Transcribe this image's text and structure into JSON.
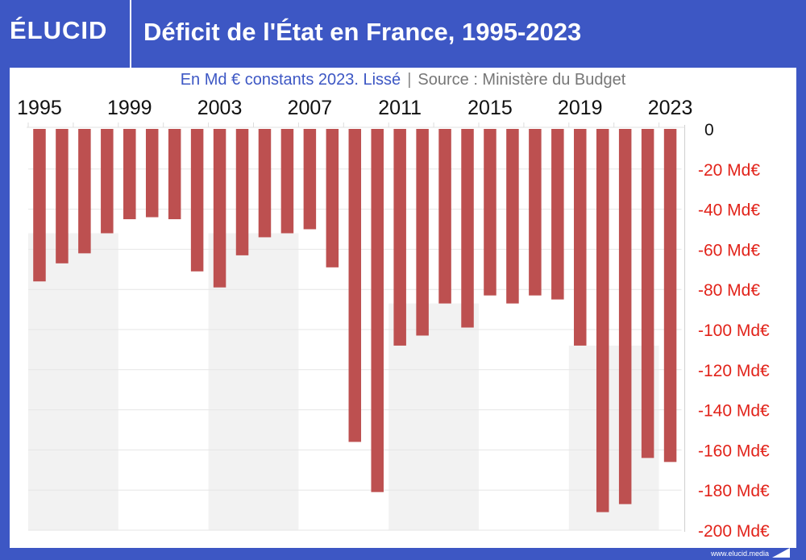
{
  "header": {
    "logo": "ÉLUCID",
    "title": "Déficit de l'État en France, 1995-2023"
  },
  "subtitle": {
    "left": "En Md € constants 2023. Lissé",
    "separator": "|",
    "right": "Source : Ministère du Budget"
  },
  "footer": {
    "url": "www.elucid.media"
  },
  "colors": {
    "brand": "#3d57c4",
    "bar": "#bd5050",
    "axis_label": "#e2231a",
    "shading": "#f2f2f2"
  },
  "chart_data": {
    "type": "bar",
    "title": "Déficit de l'État en France, 1995-2023",
    "xlabel": "",
    "ylabel": "En Md € constants 2023",
    "categories": [
      1995,
      1996,
      1997,
      1998,
      1999,
      2000,
      2001,
      2002,
      2003,
      2004,
      2005,
      2006,
      2007,
      2008,
      2009,
      2010,
      2011,
      2012,
      2013,
      2014,
      2015,
      2016,
      2017,
      2018,
      2019,
      2020,
      2021,
      2022,
      2023
    ],
    "values": [
      -76,
      -67,
      -62,
      -52,
      -45,
      -44,
      -45,
      -71,
      -79,
      -63,
      -54,
      -52,
      -50,
      -69,
      -156,
      -181,
      -108,
      -103,
      -87,
      -99,
      -83,
      -87,
      -83,
      -85,
      -108,
      -191,
      -187,
      -164,
      -166
    ],
    "x_tick_labels": [
      "1995",
      "1999",
      "2003",
      "2007",
      "2011",
      "2015",
      "2019",
      "2023"
    ],
    "y_ticks": [
      0,
      -20,
      -40,
      -60,
      -80,
      -100,
      -120,
      -140,
      -160,
      -180,
      -200
    ],
    "y_tick_labels": [
      "0",
      "-20 Md€",
      "-40 Md€",
      "-60 Md€",
      "-80 Md€",
      "-100 Md€",
      "-120 Md€",
      "-140 Md€",
      "-160 Md€",
      "-180 Md€",
      "-200 Md€"
    ],
    "ylim": [
      -200,
      0
    ],
    "grid": true,
    "y_axis_position": "right"
  }
}
